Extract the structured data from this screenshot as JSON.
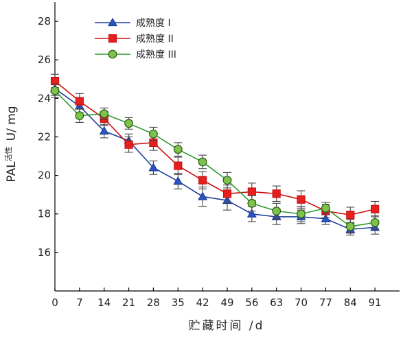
{
  "chart_data": {
    "type": "line",
    "title": "",
    "xlabel": "贮藏时间 /d",
    "ylabel_main": "PAL",
    "ylabel_sub": "活性",
    "ylabel_unit": "U/ mg",
    "x": [
      0,
      7,
      14,
      21,
      28,
      35,
      42,
      49,
      56,
      63,
      70,
      77,
      84,
      91
    ],
    "xlim": [
      0,
      98
    ],
    "ylim": [
      14,
      29
    ],
    "yticks": [
      16,
      18,
      20,
      22,
      24,
      26,
      28
    ],
    "grid": false,
    "legend_position": "top-left",
    "series": [
      {
        "name": "成熟度 I",
        "marker": "triangle",
        "color": "#1f3f99",
        "fill": "#2b55c0",
        "values": [
          24.5,
          23.6,
          22.3,
          21.8,
          20.4,
          19.7,
          18.9,
          18.7,
          18.0,
          17.85,
          17.85,
          17.75,
          17.2,
          17.3
        ],
        "errors": [
          0.35,
          0.35,
          0.35,
          0.35,
          0.35,
          0.4,
          0.5,
          0.5,
          0.4,
          0.4,
          0.35,
          0.3,
          0.3,
          0.35
        ]
      },
      {
        "name": "成熟度 II",
        "marker": "square",
        "color": "#cc1010",
        "fill": "#e52020",
        "values": [
          24.9,
          23.85,
          22.95,
          21.6,
          21.7,
          20.5,
          19.75,
          19.05,
          19.15,
          19.05,
          18.75,
          18.15,
          17.95,
          18.25
        ],
        "errors": [
          0.35,
          0.4,
          0.35,
          0.4,
          0.4,
          0.45,
          0.45,
          0.45,
          0.45,
          0.4,
          0.45,
          0.35,
          0.4,
          0.4
        ]
      },
      {
        "name": "成熟度 III",
        "marker": "circle",
        "color": "#2e9a2e",
        "fill": "#7ec24a",
        "values": [
          24.4,
          23.1,
          23.2,
          22.7,
          22.15,
          21.35,
          20.7,
          19.75,
          18.55,
          18.15,
          18.0,
          18.3,
          17.35,
          17.55
        ],
        "errors": [
          0.35,
          0.35,
          0.3,
          0.3,
          0.35,
          0.35,
          0.35,
          0.4,
          0.4,
          0.4,
          0.4,
          0.3,
          0.35,
          0.35
        ]
      }
    ]
  }
}
